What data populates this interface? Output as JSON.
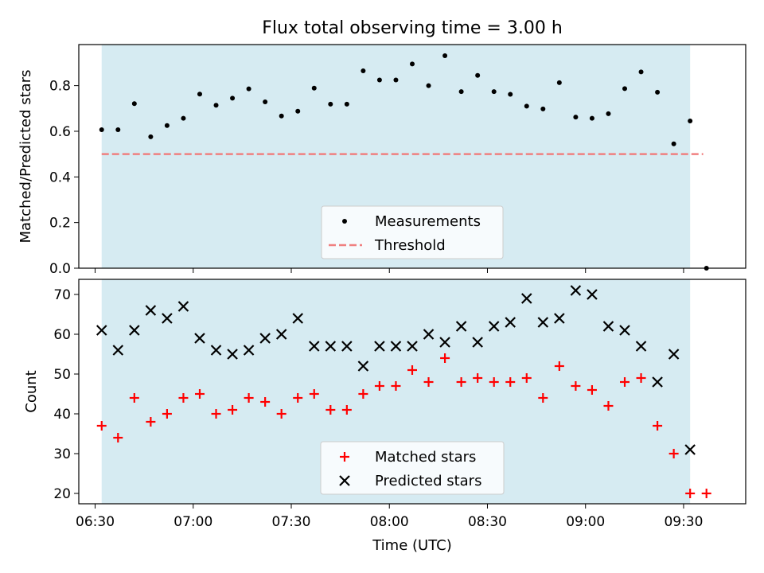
{
  "title": "Flux total observing time = 3.00 h",
  "colors": {
    "shade": "#add8e6",
    "measurement": "#000000",
    "threshold": "#f08080",
    "matched": "#ff0000",
    "predicted": "#000000"
  },
  "chart_data": [
    {
      "type": "scatter",
      "panel": "top",
      "ylabel": "Matched/Predicted stars",
      "xlabel": "",
      "ylim": [
        0,
        0.98
      ],
      "yticks": [
        0.0,
        0.2,
        0.4,
        0.6,
        0.8
      ],
      "ytick_labels": [
        "0.0",
        "0.2",
        "0.4",
        "0.6",
        "0.8"
      ],
      "shaded_interval": [
        "06:32",
        "09:32"
      ],
      "threshold": {
        "value": 0.5,
        "x_range": [
          "06:32",
          "09:36"
        ]
      },
      "legend_location": "lower center",
      "legend": [
        "Measurements",
        "Threshold"
      ],
      "series": [
        {
          "name": "Measurements",
          "times": [
            "06:32",
            "06:37",
            "06:42",
            "06:47",
            "06:52",
            "06:57",
            "07:02",
            "07:07",
            "07:12",
            "07:17",
            "07:22",
            "07:27",
            "07:32",
            "07:37",
            "07:42",
            "07:47",
            "07:52",
            "07:57",
            "08:02",
            "08:07",
            "08:12",
            "08:17",
            "08:22",
            "08:27",
            "08:32",
            "08:37",
            "08:42",
            "08:47",
            "08:52",
            "08:57",
            "09:02",
            "09:07",
            "09:12",
            "09:17",
            "09:22",
            "09:27",
            "09:32",
            "09:37"
          ],
          "values": [
            0.607,
            0.607,
            0.721,
            0.576,
            0.625,
            0.657,
            0.763,
            0.714,
            0.745,
            0.786,
            0.729,
            0.667,
            0.688,
            0.789,
            0.719,
            0.719,
            0.865,
            0.825,
            0.825,
            0.895,
            0.8,
            0.931,
            0.774,
            0.845,
            0.774,
            0.762,
            0.71,
            0.698,
            0.813,
            0.662,
            0.657,
            0.677,
            0.787,
            0.86,
            0.771,
            0.545,
            0.645,
            0.0
          ]
        }
      ]
    },
    {
      "type": "scatter",
      "panel": "bottom",
      "ylabel": "Count",
      "xlabel": "Time (UTC)",
      "ylim": [
        17.4,
        73.8
      ],
      "yticks": [
        20,
        30,
        40,
        50,
        60,
        70
      ],
      "ytick_labels": [
        "20",
        "30",
        "40",
        "50",
        "60",
        "70"
      ],
      "shaded_interval": [
        "06:32",
        "09:32"
      ],
      "legend_location": "lower center",
      "legend": [
        "Matched stars",
        "Predicted stars"
      ],
      "xlim": [
        "06:25",
        "09:49"
      ],
      "xticks": [
        "06:30",
        "07:00",
        "07:30",
        "08:00",
        "08:30",
        "09:00",
        "09:30"
      ],
      "xtick_labels": [
        "06:30",
        "07:00",
        "07:30",
        "08:00",
        "08:30",
        "09:00",
        "09:30"
      ],
      "series": [
        {
          "name": "Matched stars",
          "marker": "+",
          "times": [
            "06:32",
            "06:37",
            "06:42",
            "06:47",
            "06:52",
            "06:57",
            "07:02",
            "07:07",
            "07:12",
            "07:17",
            "07:22",
            "07:27",
            "07:32",
            "07:37",
            "07:42",
            "07:47",
            "07:52",
            "07:57",
            "08:02",
            "08:07",
            "08:12",
            "08:17",
            "08:22",
            "08:27",
            "08:32",
            "08:37",
            "08:42",
            "08:47",
            "08:52",
            "08:57",
            "09:02",
            "09:07",
            "09:12",
            "09:17",
            "09:22",
            "09:27",
            "09:32",
            "09:37"
          ],
          "values": [
            37,
            34,
            44,
            38,
            40,
            44,
            45,
            40,
            41,
            44,
            43,
            40,
            44,
            45,
            41,
            41,
            45,
            47,
            47,
            51,
            48,
            54,
            48,
            49,
            48,
            48,
            49,
            44,
            52,
            47,
            46,
            42,
            48,
            49,
            37,
            30,
            20,
            20
          ]
        },
        {
          "name": "Predicted stars",
          "marker": "x",
          "times": [
            "06:32",
            "06:37",
            "06:42",
            "06:47",
            "06:52",
            "06:57",
            "07:02",
            "07:07",
            "07:12",
            "07:17",
            "07:22",
            "07:27",
            "07:32",
            "07:37",
            "07:42",
            "07:47",
            "07:52",
            "07:57",
            "08:02",
            "08:07",
            "08:12",
            "08:17",
            "08:22",
            "08:27",
            "08:32",
            "08:37",
            "08:42",
            "08:47",
            "08:52",
            "08:57",
            "09:02",
            "09:07",
            "09:12",
            "09:17",
            "09:22",
            "09:27",
            "09:32"
          ],
          "values": [
            61,
            56,
            61,
            66,
            64,
            67,
            59,
            56,
            55,
            56,
            59,
            60,
            64,
            57,
            57,
            57,
            52,
            57,
            57,
            57,
            60,
            58,
            62,
            58,
            62,
            63,
            69,
            63,
            64,
            71,
            70,
            62,
            61,
            57,
            48,
            55,
            31
          ]
        }
      ]
    }
  ]
}
